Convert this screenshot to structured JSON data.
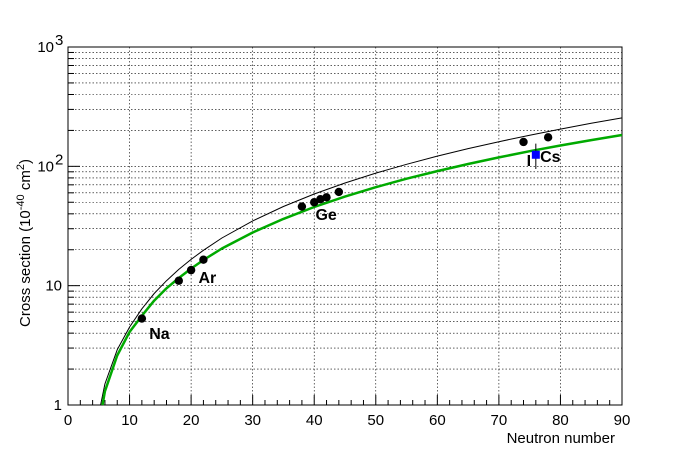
{
  "chart_data": {
    "type": "scatter",
    "title": "",
    "xlabel": "Neutron number",
    "ylabel_main": "Cross section (10",
    "ylabel_sup": "-40",
    "ylabel_unit": " cm",
    "ylabel_sup2": "2",
    "ylabel_close": ")",
    "xlim": [
      0,
      90
    ],
    "ylim": [
      1,
      1000
    ],
    "yscale": "log",
    "grid": true,
    "x_ticks": [
      0,
      10,
      20,
      30,
      40,
      50,
      60,
      70,
      80,
      90
    ],
    "y_ticks": [
      {
        "value": 1,
        "label": "1"
      },
      {
        "value": 10,
        "label": "10"
      },
      {
        "value": 100,
        "label": "10",
        "sup": "2"
      },
      {
        "value": 1000,
        "label": "10",
        "sup": "3"
      }
    ],
    "curves": [
      {
        "color": "#000000",
        "width": 1,
        "points": [
          [
            5.3,
            1
          ],
          [
            6,
            1.5
          ],
          [
            8,
            2.9
          ],
          [
            10,
            4.5
          ],
          [
            12,
            6.4
          ],
          [
            14,
            8.6
          ],
          [
            16,
            11
          ],
          [
            18,
            13.7
          ],
          [
            20,
            16.6
          ],
          [
            22,
            19.8
          ],
          [
            25,
            25.1
          ],
          [
            30,
            34.9
          ],
          [
            35,
            46.1
          ],
          [
            40,
            58.6
          ],
          [
            45,
            72.5
          ],
          [
            50,
            87.7
          ],
          [
            55,
            104.1
          ],
          [
            60,
            121.8
          ],
          [
            65,
            140.8
          ],
          [
            70,
            161
          ],
          [
            75,
            182.5
          ],
          [
            80,
            205.2
          ],
          [
            85,
            229.2
          ],
          [
            90,
            254.5
          ]
        ]
      },
      {
        "color": "#00aa00",
        "width": 2.5,
        "points": [
          [
            5.6,
            1
          ],
          [
            6,
            1.3
          ],
          [
            8,
            2.6
          ],
          [
            10,
            4.1
          ],
          [
            12,
            5.6
          ],
          [
            14,
            7.5
          ],
          [
            16,
            9.5
          ],
          [
            18,
            11.6
          ],
          [
            20,
            13.9
          ],
          [
            22,
            16.4
          ],
          [
            25,
            20.5
          ],
          [
            30,
            27.9
          ],
          [
            35,
            36.3
          ],
          [
            40,
            45.6
          ],
          [
            45,
            55.8
          ],
          [
            50,
            66.8
          ],
          [
            55,
            78.7
          ],
          [
            60,
            91.3
          ],
          [
            65,
            104.7
          ],
          [
            70,
            118.9
          ],
          [
            75,
            133.8
          ],
          [
            80,
            149.5
          ],
          [
            85,
            165.9
          ],
          [
            90,
            183
          ]
        ]
      }
    ],
    "points": [
      {
        "x": 12,
        "y": 5.3
      },
      {
        "x": 18,
        "y": 11
      },
      {
        "x": 20,
        "y": 13.5
      },
      {
        "x": 22,
        "y": 16.5
      },
      {
        "x": 38,
        "y": 46
      },
      {
        "x": 40,
        "y": 50
      },
      {
        "x": 41,
        "y": 53
      },
      {
        "x": 42,
        "y": 55
      },
      {
        "x": 44,
        "y": 61
      },
      {
        "x": 74,
        "y": 160
      },
      {
        "x": 78,
        "y": 175
      }
    ],
    "measurement": {
      "x": 76,
      "y": 125,
      "y_low": 95,
      "y_high": 155,
      "color": "#0000ff"
    },
    "annotations": [
      {
        "text": "Na",
        "x": 13.2,
        "y": 4.0
      },
      {
        "text": "Ar",
        "x": 21.2,
        "y": 11.8
      },
      {
        "text": "Ge",
        "x": 40.2,
        "y": 40
      },
      {
        "text": "I",
        "x": 74.5,
        "y": 113
      },
      {
        "text": "Cs",
        "x": 76.7,
        "y": 122
      }
    ]
  }
}
